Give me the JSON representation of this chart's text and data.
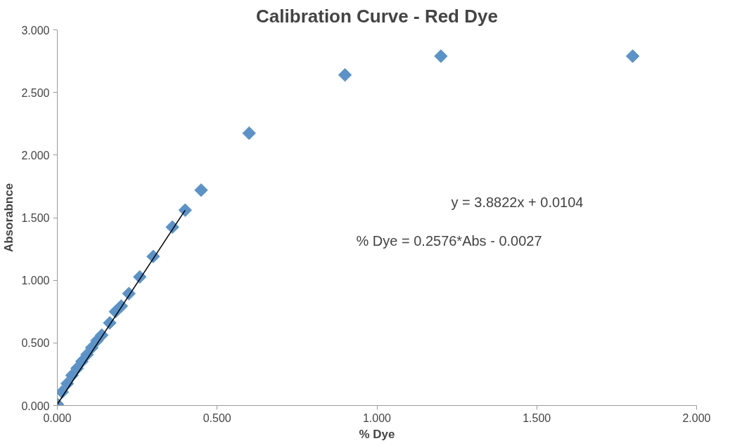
{
  "chart_data": {
    "type": "scatter",
    "title": "Calibration Curve - Red Dye",
    "xlabel": "% Dye",
    "ylabel": "Absorabnce",
    "xlim": [
      0,
      2
    ],
    "ylim": [
      0,
      3
    ],
    "xticks": [
      {
        "value": 0,
        "label": "0.000"
      },
      {
        "value": 0.5,
        "label": "0.500"
      },
      {
        "value": 1,
        "label": "1.000"
      },
      {
        "value": 1.5,
        "label": "1.500"
      },
      {
        "value": 2,
        "label": "2.000"
      }
    ],
    "yticks": [
      {
        "value": 0,
        "label": "0.000"
      },
      {
        "value": 0.5,
        "label": "0.500"
      },
      {
        "value": 1,
        "label": "1.000"
      },
      {
        "value": 1.5,
        "label": "1.500"
      },
      {
        "value": 2,
        "label": "2.000"
      },
      {
        "value": 2.5,
        "label": "2.500"
      },
      {
        "value": 3,
        "label": "3.000"
      }
    ],
    "grid": false,
    "series": [
      {
        "marker": "diamond",
        "color": "#5b93c9",
        "x": [
          0.0,
          0.015,
          0.031,
          0.046,
          0.062,
          0.077,
          0.093,
          0.108,
          0.124,
          0.139,
          0.164,
          0.182,
          0.2,
          0.224,
          0.258,
          0.3,
          0.36,
          0.4,
          0.45,
          0.6,
          0.9,
          1.2,
          1.8
        ],
        "values": [
          0.01,
          0.108,
          0.175,
          0.241,
          0.297,
          0.352,
          0.407,
          0.462,
          0.518,
          0.562,
          0.66,
          0.75,
          0.794,
          0.894,
          1.027,
          1.19,
          1.425,
          1.56,
          1.72,
          2.175,
          2.64,
          2.79,
          2.79
        ]
      },
      {
        "type": "line",
        "color": "#000000",
        "line_style": "solid",
        "x": [
          0.0,
          0.4
        ],
        "values": [
          0.01,
          1.56
        ]
      }
    ],
    "annotations": [
      "y = 3.8822x + 0.0104",
      "% Dye = 0.2576*Abs - 0.0027"
    ]
  }
}
